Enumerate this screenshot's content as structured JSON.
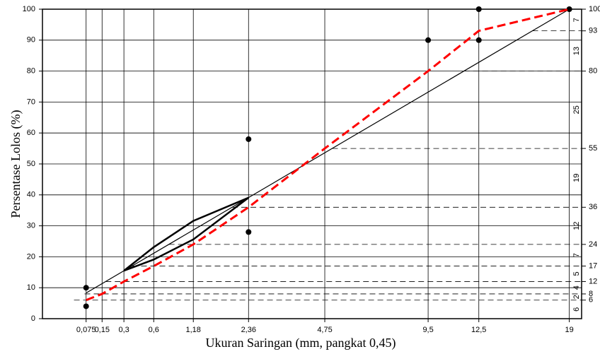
{
  "chart_data": {
    "type": "line",
    "y_label": "Persentase Lolos (%)",
    "x_label": "Ukuran Saringan (mm, pangkat 0,45)",
    "x_power": 0.45,
    "xlim": [
      0,
      20
    ],
    "xticks": [
      {
        "value": 0.075,
        "label": "0,075"
      },
      {
        "value": 0.15,
        "label": "0,15"
      },
      {
        "value": 0.3,
        "label": "0,3"
      },
      {
        "value": 0.6,
        "label": "0,6"
      },
      {
        "value": 1.18,
        "label": "1,18"
      },
      {
        "value": 2.36,
        "label": "2,36"
      },
      {
        "value": 4.75,
        "label": "4,75"
      },
      {
        "value": 9.5,
        "label": "9,5"
      },
      {
        "value": 12.5,
        "label": "12,5"
      },
      19
    ],
    "ylim": [
      0,
      100
    ],
    "yticks": [
      0,
      10,
      20,
      30,
      40,
      50,
      60,
      70,
      80,
      90,
      100
    ],
    "y2lim": [
      0,
      100
    ],
    "y2ticks": [
      6,
      8,
      12,
      17,
      24,
      36,
      55,
      80,
      93,
      100
    ],
    "y2_interval_labels": [
      6,
      2,
      4,
      5,
      7,
      12,
      19,
      25,
      13,
      7
    ],
    "grid": true,
    "series": [
      {
        "color": "#000000",
        "line_width": 1.2,
        "dashed": false,
        "marker": false,
        "x": [
          0.075,
          19
        ],
        "values": [
          8.3,
          100
        ]
      },
      {
        "color": "#000000",
        "line_width": 2.5,
        "dashed": false,
        "marker": false,
        "x": [
          0.3,
          0.6,
          1.18,
          2.36
        ],
        "values": [
          15.5,
          23.1,
          31.6,
          39.1
        ]
      },
      {
        "color": "#000000",
        "line_width": 2.5,
        "dashed": false,
        "marker": false,
        "x": [
          0.3,
          0.6,
          1.18,
          2.36
        ],
        "values": [
          15.5,
          19.1,
          25.6,
          39.1
        ]
      },
      {
        "color": "#000000",
        "line_width": 0,
        "dashed": false,
        "marker": true,
        "x": [
          0.075,
          0.075,
          2.36,
          2.36,
          9.5,
          12.5,
          12.5,
          19
        ],
        "values": [
          4,
          10,
          28,
          58,
          90,
          90,
          100,
          100
        ]
      },
      {
        "color": "#ff0000",
        "line_width": 3,
        "dashed": true,
        "marker": false,
        "x": [
          0.075,
          0.15,
          0.3,
          0.6,
          1.18,
          2.36,
          4.75,
          9.5,
          12.5,
          19
        ],
        "values": [
          6,
          8,
          12,
          17,
          24,
          36,
          55,
          80,
          93,
          100
        ]
      }
    ]
  }
}
